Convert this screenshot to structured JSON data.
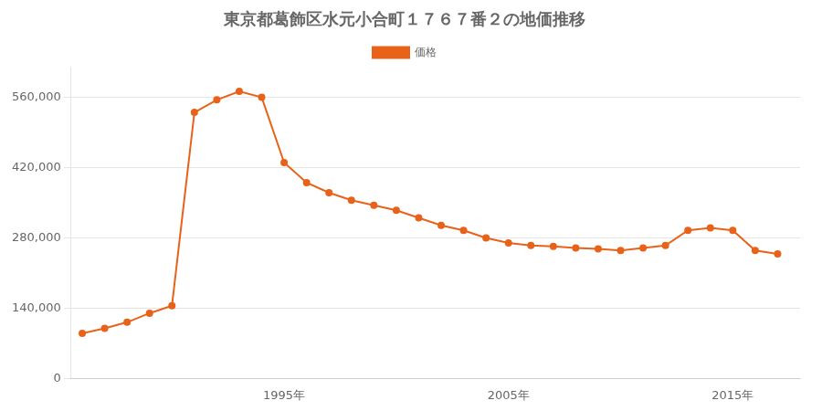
{
  "chart_data": {
    "type": "line",
    "title": "東京都葛飾区水元小合町１７６７番２の地価推移",
    "x": [
      1986,
      1987,
      1988,
      1989,
      1990,
      1991,
      1992,
      1993,
      1994,
      1995,
      1996,
      1997,
      1998,
      1999,
      2000,
      2001,
      2002,
      2003,
      2004,
      2005,
      2006,
      2007,
      2008,
      2009,
      2010,
      2011,
      2012,
      2013,
      2014,
      2015,
      2016,
      2017
    ],
    "series": [
      {
        "name": "価格",
        "color": "#E8621A",
        "marker": "circle",
        "values": [
          90000,
          100000,
          112000,
          130000,
          145000,
          530000,
          555000,
          572000,
          560000,
          430000,
          390000,
          370000,
          355000,
          345000,
          335000,
          320000,
          305000,
          295000,
          280000,
          270000,
          265000,
          263000,
          260000,
          258000,
          255000,
          260000,
          265000,
          295000,
          300000,
          295000,
          255000,
          248000
        ]
      }
    ],
    "xlim": [
      1985.5,
      2018
    ],
    "xticks": [
      {
        "value": 1995,
        "label": "1995年"
      },
      {
        "value": 2005,
        "label": "2005年"
      },
      {
        "value": 2015,
        "label": "2015年"
      }
    ],
    "ylim": [
      0,
      620000
    ],
    "yticks": [
      0,
      {
        "value": 140000,
        "label": "140,000"
      },
      {
        "value": 280000,
        "label": "280,000"
      },
      {
        "value": 420000,
        "label": "420,000"
      },
      {
        "value": 560000,
        "label": "560,000"
      }
    ],
    "grid": "y",
    "legend": "top"
  }
}
